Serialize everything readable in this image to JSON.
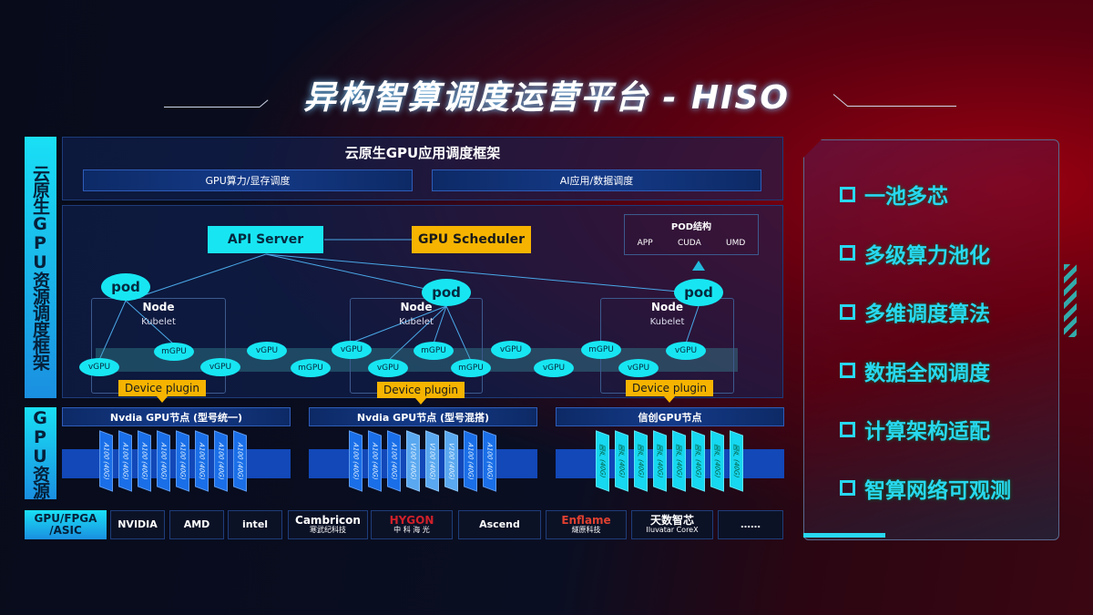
{
  "title": "异构智算调度运营平台 - HISO",
  "side_labels": {
    "framework": "云原生GPU资源调度框架",
    "resources": "GPU资源"
  },
  "top_panel": {
    "title": "云原生GPU应用调度框架",
    "boxes": [
      "GPU算力/显存调度",
      "AI应用/数据调度"
    ]
  },
  "diagram": {
    "api_server": "API Server",
    "gpu_scheduler": "GPU Scheduler",
    "pod_struct": {
      "title": "POD结构",
      "items": [
        "APP",
        "CUDA",
        "UMD"
      ]
    },
    "pod": "pod",
    "node": "Node",
    "kubelet": "Kubelet",
    "device_plugin": "Device plugin",
    "units": [
      "vGPU",
      "mGPU",
      "vGPU",
      "vGPU",
      "mGPU",
      "vGPU",
      "vGPU",
      "mGPU",
      "mGPU",
      "vGPU",
      "vGPU",
      "mGPU",
      "vGPU",
      "vGPU"
    ]
  },
  "gpu_groups": [
    {
      "title": "Nvdia GPU节点 (型号统一)",
      "chips": [
        "A100 (40G)",
        "A100 (40G)",
        "A100 (40G)",
        "A100 (40G)",
        "A100 (40G)",
        "A100 (40G)",
        "A100 (40G)",
        "A100 (40G)"
      ],
      "color": "#1a6fe8"
    },
    {
      "title": "Nvdia GPU节点 (型号混搭)",
      "chips": [
        "A100 (40G)",
        "A100 (40G)",
        "A100 (40G)",
        "V100 (40G)",
        "V100 (40G)",
        "V100 (40G)",
        "A100 (40G)",
        "A100 (40G)"
      ],
      "color": "#1a6fe8"
    },
    {
      "title": "信创GPU节点",
      "chips": [
        "国产 (40G)",
        "国产 (40G)",
        "国产 (40G)",
        "国产 (40G)",
        "国产 (40G)",
        "国产 (40G)",
        "国产 (40G)",
        "国产 (40G)"
      ],
      "color": "#16d8f0"
    }
  ],
  "vendors": {
    "label": "GPU/FPGA /ASIC",
    "items": [
      {
        "name": "NVIDIA"
      },
      {
        "name": "AMD"
      },
      {
        "name": "intel"
      },
      {
        "name": "Cambricon",
        "sub": "寒武纪科技"
      },
      {
        "name": "HYGON",
        "sub": "中 科 海 光"
      },
      {
        "name": "Ascend"
      },
      {
        "name": "Enflame",
        "sub": "燧原科技"
      },
      {
        "name": "天数智芯",
        "sub": "Iluvatar CoreX"
      },
      {
        "name": "……"
      }
    ]
  },
  "features": [
    "一池多芯",
    "多级算力池化",
    "多维调度算法",
    "数据全网调度",
    "计算架构适配",
    "智算网络可观测"
  ],
  "colors": {
    "cyan": "#17e6f2",
    "yellow": "#f6b400",
    "blue": "#1a6fe8"
  }
}
